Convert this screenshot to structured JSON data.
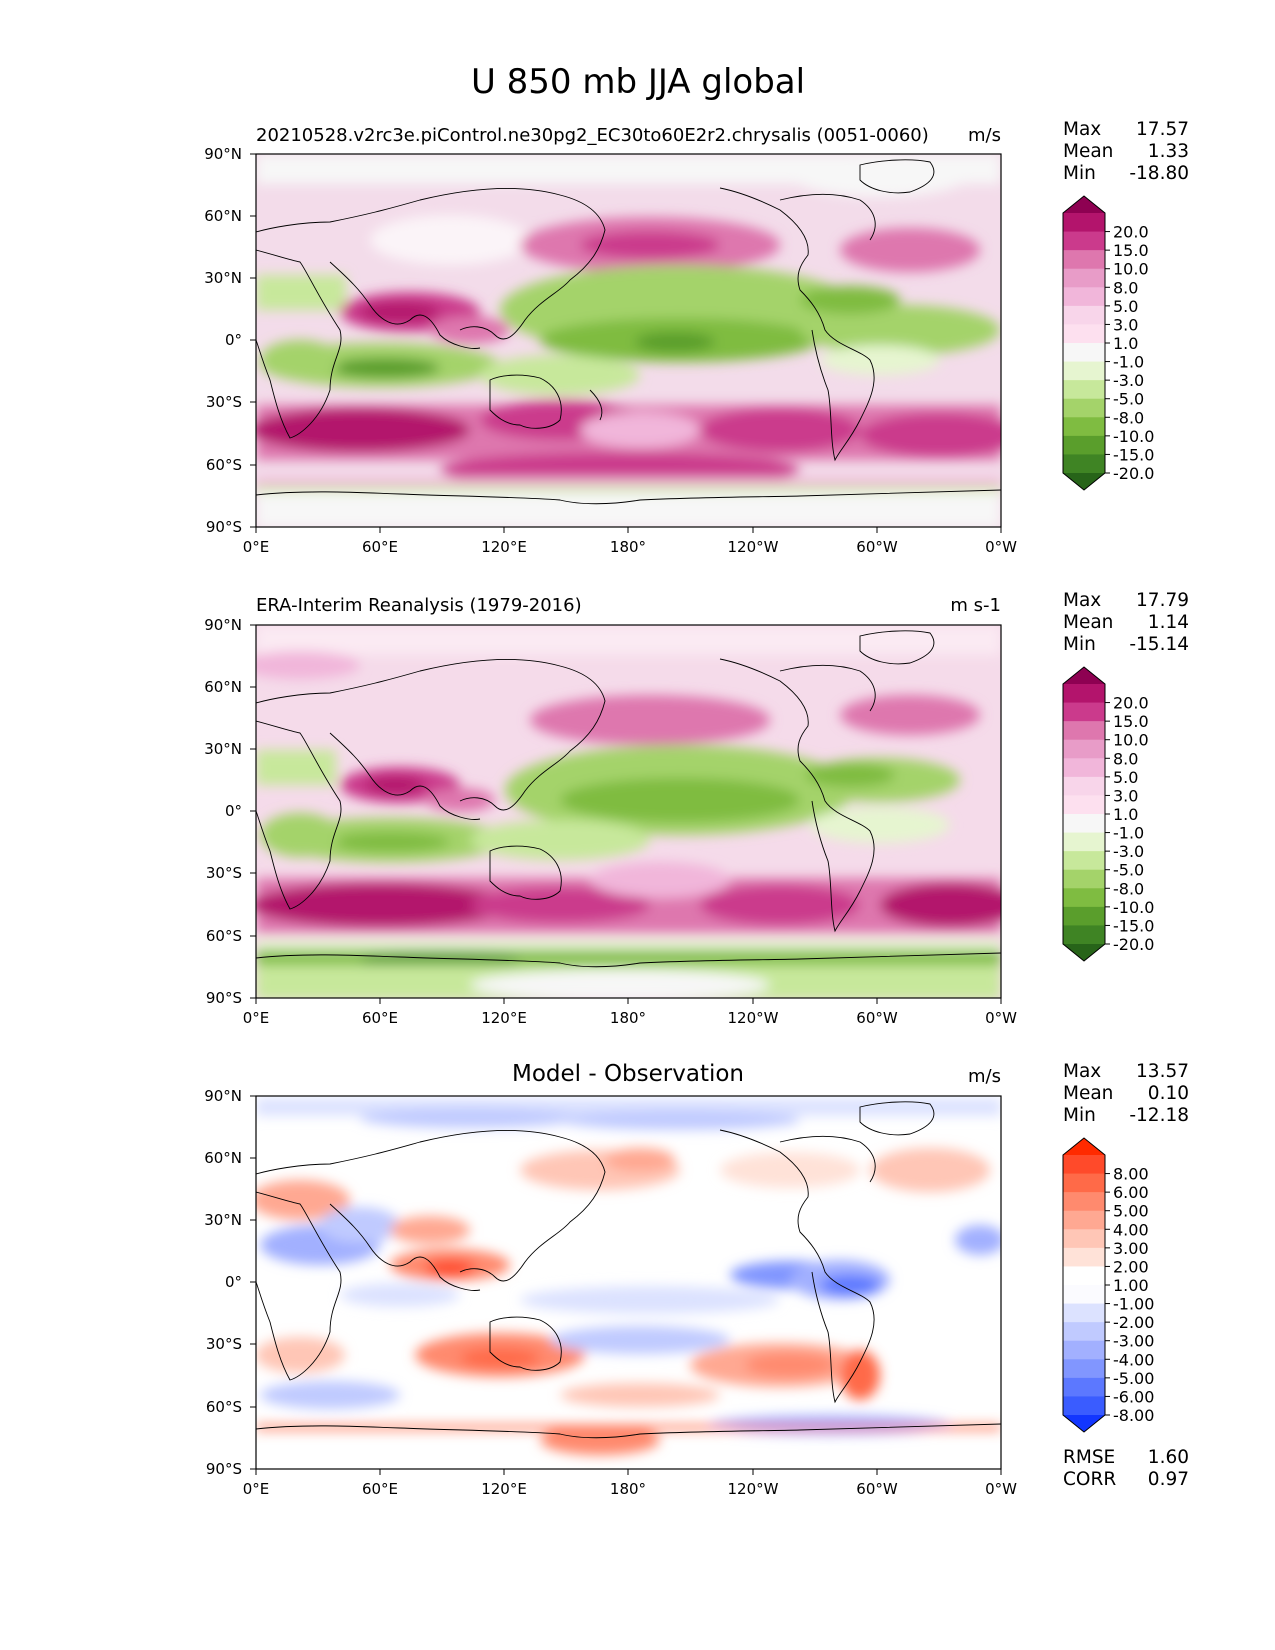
{
  "figure": {
    "title": "U 850 mb JJA global",
    "lat_ticks": [
      "90°N",
      "60°N",
      "30°N",
      "0°",
      "30°S",
      "60°S",
      "90°S"
    ],
    "lon_ticks": [
      "0°E",
      "60°E",
      "120°E",
      "180°",
      "120°W",
      "60°W",
      "0°W"
    ]
  },
  "panels": [
    {
      "left_title": "20210528.v2rc3e.piControl.ne30pg2_EC30to60E2r2.chrysalis (0051-0060)",
      "center_title": "",
      "units": "m/s",
      "stats": {
        "max": "17.57",
        "mean": "1.33",
        "min": "-18.80"
      },
      "colorbar_labels": [
        "20.0",
        "15.0",
        "10.0",
        "8.0",
        "5.0",
        "3.0",
        "1.0",
        "-1.0",
        "-3.0",
        "-5.0",
        "-8.0",
        "-10.0",
        "-15.0",
        "-20.0"
      ],
      "colorbar_colors": [
        "#8e0152",
        "#b3146c",
        "#cb3a8c",
        "#de77ae",
        "#e89cc8",
        "#f1b6da",
        "#f8d5ea",
        "#fde0ef",
        "#f7f7f7",
        "#e6f5d0",
        "#c7e89b",
        "#a4d36a",
        "#7fbc41",
        "#5a9e2c",
        "#3f8424",
        "#276419"
      ]
    },
    {
      "left_title": "ERA-Interim Reanalysis (1979-2016)",
      "center_title": "",
      "units": "m s-1",
      "stats": {
        "max": "17.79",
        "mean": "1.14",
        "min": "-15.14"
      },
      "colorbar_labels": [
        "20.0",
        "15.0",
        "10.0",
        "8.0",
        "5.0",
        "3.0",
        "1.0",
        "-1.0",
        "-3.0",
        "-5.0",
        "-8.0",
        "-10.0",
        "-15.0",
        "-20.0"
      ],
      "colorbar_colors": [
        "#8e0152",
        "#b3146c",
        "#cb3a8c",
        "#de77ae",
        "#e89cc8",
        "#f1b6da",
        "#f8d5ea",
        "#fde0ef",
        "#f7f7f7",
        "#e6f5d0",
        "#c7e89b",
        "#a4d36a",
        "#7fbc41",
        "#5a9e2c",
        "#3f8424",
        "#276419"
      ]
    },
    {
      "left_title": "",
      "center_title": "Model - Observation",
      "units": "m/s",
      "stats": {
        "max": "13.57",
        "mean": "0.10",
        "min": "-12.18"
      },
      "colorbar_labels": [
        "8.00",
        "6.00",
        "5.00",
        "4.00",
        "3.00",
        "2.00",
        "1.00",
        "-1.00",
        "-2.00",
        "-3.00",
        "-4.00",
        "-5.00",
        "-6.00",
        "-8.00"
      ],
      "colorbar_colors": [
        "#ff2a00",
        "#ff4a2a",
        "#ff6a48",
        "#ff8a6e",
        "#ffa892",
        "#ffc6b6",
        "#ffe2d8",
        "#ffffff",
        "#fbfbff",
        "#dce2ff",
        "#c0caff",
        "#a2b0ff",
        "#8196ff",
        "#5c78ff",
        "#3a5cff",
        "#1236ff"
      ],
      "rmse": "1.60",
      "corr": "0.97"
    }
  ],
  "labels": {
    "max": "Max",
    "mean": "Mean",
    "min": "Min",
    "rmse": "RMSE",
    "corr": "CORR"
  }
}
